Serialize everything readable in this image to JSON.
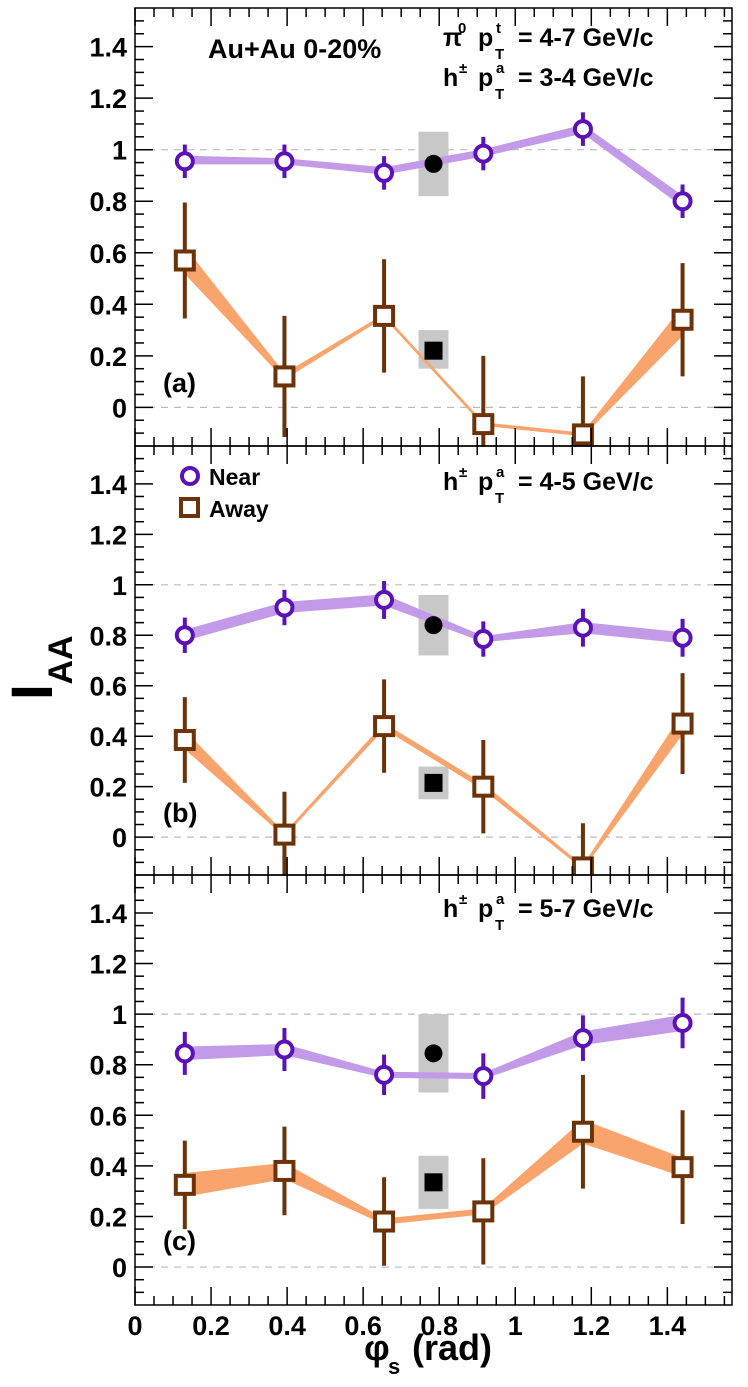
{
  "chart_data": {
    "type": "scatter",
    "title": "",
    "xlabel": {
      "main": "φ",
      "sub": "s",
      "unit": "(rad)"
    },
    "ylabel": {
      "main": "I",
      "sub": "AA"
    },
    "xlim": [
      0,
      1.57
    ],
    "xticks": [
      0,
      0.2,
      0.4,
      0.6,
      0.8,
      1,
      1.2,
      1.4
    ],
    "xtick_labels": [
      "0",
      "0.2",
      "0.4",
      "0.6",
      "0.8",
      "1",
      "1.2",
      "1.4"
    ],
    "ylim": [
      -0.15,
      1.55
    ],
    "yticks": [
      0,
      0.2,
      0.4,
      0.6,
      0.8,
      1,
      1.2,
      1.4
    ],
    "ytick_labels": [
      "0",
      "0.2",
      "0.4",
      "0.6",
      "0.8",
      "1",
      "1.2",
      "1.4"
    ],
    "grid": "dashed lines at y=0 and y=1",
    "colors": {
      "near_marker": "#5a12b8",
      "near_band": "#c39ae8",
      "away_marker": "#6b3307",
      "away_band": "#f8a46c",
      "sys_box": "#c8c8c8",
      "avg_marker": "#000000",
      "dash": "#bbbbbb"
    },
    "legend": {
      "placement": "top-left of panel (b)",
      "near": "Near",
      "away": "Away"
    },
    "header": {
      "system": "Au+Au 0-20%"
    },
    "panels": [
      {
        "label": "(a)",
        "trigger": {
          "main": "π",
          "sup": "0",
          "p": "p",
          "psup": "t",
          "psub": "T",
          "range": "= 4-7 GeV/c"
        },
        "assoc": {
          "main": "h",
          "sup": "±",
          "p": "p",
          "psup": "a",
          "psub": "T",
          "range": "= 3-4 GeV/c"
        },
        "x": [
          0.131,
          0.393,
          0.655,
          0.916,
          1.178,
          1.44
        ],
        "near": {
          "y": [
            0.955,
            0.955,
            0.91,
            0.985,
            1.08,
            0.8
          ],
          "err": [
            0.065,
            0.065,
            0.065,
            0.065,
            0.065,
            0.065
          ],
          "band": [
            [
              0.945,
              0.975
            ],
            [
              0.945,
              0.965
            ],
            [
              0.905,
              0.93
            ],
            [
              0.975,
              1.0
            ],
            [
              1.065,
              1.095
            ],
            [
              0.78,
              0.82
            ]
          ],
          "avg": 0.945,
          "avg_sys": [
            0.82,
            1.07
          ]
        },
        "away": {
          "y": [
            0.57,
            0.12,
            0.355,
            -0.065,
            -0.105,
            0.34
          ],
          "err": [
            0.225,
            0.235,
            0.22,
            0.265,
            0.225,
            0.22
          ],
          "band": [
            [
              0.52,
              0.62
            ],
            [
              0.11,
              0.13
            ],
            [
              0.35,
              0.36
            ],
            [
              -0.07,
              -0.06
            ],
            [
              -0.11,
              -0.1
            ],
            [
              0.28,
              0.39
            ]
          ],
          "avg": 0.22,
          "avg_sys": [
            0.15,
            0.3
          ]
        }
      },
      {
        "label": "(b)",
        "assoc": {
          "main": "h",
          "sup": "±",
          "p": "p",
          "psup": "a",
          "psub": "T",
          "range": "= 4-5 GeV/c"
        },
        "x": [
          0.131,
          0.393,
          0.655,
          0.916,
          1.178,
          1.44
        ],
        "near": {
          "y": [
            0.8,
            0.91,
            0.94,
            0.785,
            0.83,
            0.79
          ],
          "err": [
            0.07,
            0.07,
            0.075,
            0.07,
            0.075,
            0.075
          ],
          "band": [
            [
              0.78,
              0.82
            ],
            [
              0.89,
              0.93
            ],
            [
              0.92,
              0.96
            ],
            [
              0.775,
              0.795
            ],
            [
              0.81,
              0.85
            ],
            [
              0.77,
              0.81
            ]
          ],
          "avg": 0.84,
          "avg_sys": [
            0.72,
            0.96
          ]
        },
        "away": {
          "y": [
            0.385,
            0.01,
            0.44,
            0.2,
            -0.12,
            0.45
          ],
          "err": [
            0.17,
            0.17,
            0.185,
            0.185,
            0.175,
            0.2
          ],
          "band": [
            [
              0.35,
              0.42
            ],
            [
              0.005,
              0.015
            ],
            [
              0.43,
              0.45
            ],
            [
              0.19,
              0.21
            ],
            [
              -0.125,
              -0.115
            ],
            [
              0.41,
              0.49
            ]
          ],
          "avg": 0.215,
          "avg_sys": [
            0.15,
            0.28
          ]
        }
      },
      {
        "label": "(c)",
        "assoc": {
          "main": "h",
          "sup": "±",
          "p": "p",
          "psup": "a",
          "psub": "T",
          "range": "= 5-7 GeV/c"
        },
        "x": [
          0.131,
          0.393,
          0.655,
          0.916,
          1.178,
          1.44
        ],
        "near": {
          "y": [
            0.845,
            0.86,
            0.76,
            0.755,
            0.905,
            0.965
          ],
          "err": [
            0.085,
            0.085,
            0.08,
            0.09,
            0.09,
            0.1
          ],
          "band": [
            [
              0.82,
              0.87
            ],
            [
              0.84,
              0.88
            ],
            [
              0.75,
              0.77
            ],
            [
              0.745,
              0.765
            ],
            [
              0.88,
              0.93
            ],
            [
              0.935,
              0.995
            ]
          ],
          "avg": 0.845,
          "avg_sys": [
            0.69,
            1.0
          ]
        },
        "away": {
          "y": [
            0.325,
            0.38,
            0.18,
            0.22,
            0.535,
            0.395
          ],
          "err": [
            0.175,
            0.175,
            0.175,
            0.21,
            0.225,
            0.225
          ],
          "band": [
            [
              0.28,
              0.37
            ],
            [
              0.35,
              0.41
            ],
            [
              0.17,
              0.19
            ],
            [
              0.21,
              0.23
            ],
            [
              0.49,
              0.58
            ],
            [
              0.36,
              0.43
            ]
          ],
          "avg": 0.335,
          "avg_sys": [
            0.23,
            0.44
          ]
        }
      }
    ]
  }
}
